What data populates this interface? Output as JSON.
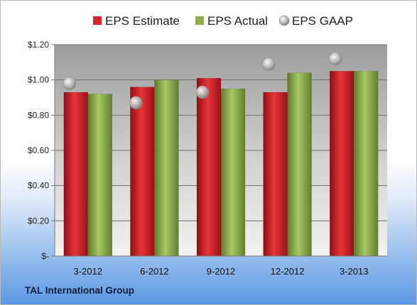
{
  "chart_data": {
    "type": "bar",
    "categories": [
      "3-2012",
      "6-2012",
      "9-2012",
      "12-2012",
      "3-2013"
    ],
    "series": [
      {
        "name": "EPS Estimate",
        "kind": "bar",
        "color": "#d9242c",
        "values": [
          0.93,
          0.96,
          1.01,
          0.93,
          1.05
        ]
      },
      {
        "name": "EPS Actual",
        "kind": "bar",
        "color": "#8fb04a",
        "values": [
          0.92,
          1.0,
          0.95,
          1.04,
          1.05
        ]
      },
      {
        "name": "EPS GAAP",
        "kind": "scatter",
        "color": "#b5b5b5",
        "values": [
          0.98,
          0.87,
          0.93,
          1.09,
          1.12
        ]
      }
    ],
    "yticks": [
      0,
      0.2,
      0.4,
      0.6,
      0.8,
      1.0,
      1.2
    ],
    "ytick_labels": [
      "$-",
      "$0.20",
      "$0.40",
      "$0.60",
      "$0.80",
      "$1.00",
      "$1.20"
    ],
    "ylim": [
      0,
      1.2
    ],
    "grid": true,
    "legend_position": "top"
  },
  "footer": {
    "company": "TAL International Group"
  }
}
